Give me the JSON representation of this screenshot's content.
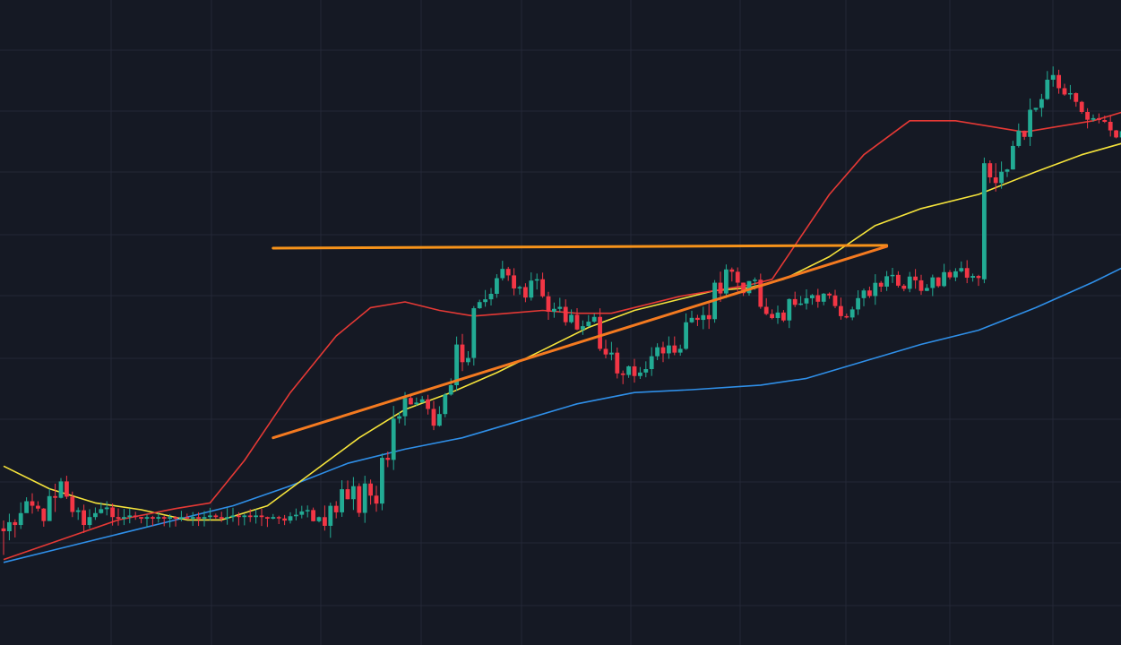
{
  "chart_data": {
    "type": "candlestick",
    "title": "",
    "xlabel": "",
    "ylabel": "",
    "grid": true,
    "ylim": [
      0,
      100
    ],
    "x_count": 196,
    "colors": {
      "background": "#151924",
      "grid": "#232836",
      "up": "#22ab94",
      "down": "#f23645",
      "resistance": "#f7931a",
      "support": "#f47a20"
    },
    "candles": {
      "start": [
        [
          13.0,
          12.5,
          14.4,
          8.3
        ],
        [
          12.5,
          14.1,
          15.6,
          10.9
        ],
        [
          14.1,
          13.6,
          14.6,
          11.4
        ],
        [
          13.6,
          15.7,
          17.6,
          12.9
        ],
        [
          15.7,
          17.8,
          18.5,
          17.4
        ],
        [
          17.8,
          17.0,
          19.2,
          15.6
        ],
        [
          17.0,
          16.5,
          17.8,
          16.0
        ],
        [
          16.5,
          14.3,
          16.6,
          13.3
        ],
        [
          14.3,
          18.7,
          20.0,
          15.9
        ],
        [
          18.7,
          18.4,
          20.9,
          15.9
        ],
        [
          18.4,
          21.3,
          21.9,
          18.3
        ],
        [
          21.3,
          18.6,
          22.3,
          18.2
        ],
        [
          18.6,
          15.9,
          19.5,
          15.0
        ],
        [
          15.9,
          16.2,
          16.7,
          14.5
        ],
        [
          16.2,
          13.6,
          17.2,
          12.2
        ],
        [
          13.6,
          15.0,
          16.4,
          13.0
        ],
        [
          15.0,
          15.7,
          16.7,
          14.5
        ],
        [
          15.7,
          16.4,
          17.6,
          15.6
        ],
        [
          16.4,
          16.7,
          17.8,
          15.3
        ],
        [
          16.7,
          15.0,
          17.4,
          13.5
        ]
      ],
      "legs": [
        [
          28,
          15.0,
          0.0,
          0.7,
          1.6,
          1
        ],
        [
          8,
          15.0,
          2.0,
          0.6,
          1.4,
          2
        ],
        [
          9,
          19.0,
          7.0,
          0.8,
          2.2,
          3
        ],
        [
          5,
          33.0,
          9.5,
          0.9,
          2.4,
          4
        ],
        [
          3,
          35.5,
          6.0,
          0.8,
          2.0,
          5
        ],
        [
          4,
          33.0,
          5.0,
          0.7,
          1.8,
          6
        ],
        [
          7,
          53.0,
          10.0,
          0.8,
          2.4,
          7
        ],
        [
          5,
          58.0,
          5.0,
          0.7,
          1.8,
          8
        ],
        [
          6,
          53.5,
          6.0,
          0.6,
          1.8,
          9
        ],
        [
          8,
          49.5,
          5.0,
          0.7,
          1.6,
          10
        ],
        [
          6,
          40.0,
          6.0,
          0.8,
          2.0,
          11
        ],
        [
          7,
          44.0,
          4.0,
          0.6,
          1.6,
          12
        ],
        [
          6,
          50.0,
          5.0,
          0.6,
          1.8,
          13
        ],
        [
          6,
          58.0,
          6.0,
          0.7,
          2.2,
          14
        ],
        [
          8,
          51.0,
          4.0,
          0.6,
          1.6,
          15
        ],
        [
          7,
          53.0,
          4.0,
          0.6,
          1.6,
          16
        ],
        [
          6,
          51.5,
          4.0,
          0.6,
          1.6,
          17
        ],
        [
          6,
          57.5,
          4.0,
          0.6,
          1.6,
          18
        ],
        [
          6,
          55.0,
          3.5,
          0.6,
          1.5,
          19
        ],
        [
          4,
          58.0,
          3.5,
          0.6,
          1.5,
          20
        ],
        [
          6,
          57.0,
          3.0,
          0.6,
          1.4,
          21
        ]
      ],
      "spike": [
        [
          57.0,
          77.5,
          78.5,
          56.3
        ],
        [
          77.5,
          75.0,
          78.0,
          74.0
        ],
        [
          75.0,
          74.0,
          77.5,
          72.5
        ],
        [
          74.0,
          76.0,
          77.8,
          73.0
        ]
      ],
      "tail": [
        [
          8,
          92.0,
          4.0,
          0.7,
          2.0,
          22
        ],
        [
          3,
          89.5,
          4.0,
          0.7,
          1.8,
          23
        ],
        [
          6,
          85.0,
          3.0,
          0.6,
          1.6,
          24
        ],
        [
          6,
          80.0,
          5.0,
          0.7,
          1.8,
          25
        ],
        [
          6,
          76.0,
          3.0,
          0.6,
          1.6,
          26
        ],
        [
          6,
          83.0,
          4.0,
          0.7,
          1.8,
          27
        ],
        [
          8,
          86.0,
          3.0,
          0.6,
          1.6,
          28
        ],
        [
          7,
          83.0,
          3.0,
          0.6,
          1.6,
          29
        ],
        [
          3,
          75.5,
          3.0,
          0.7,
          1.6,
          30
        ],
        [
          9,
          83.0,
          4.0,
          0.6,
          1.8,
          31
        ],
        [
          9,
          91.0,
          4.0,
          0.6,
          1.8,
          32
        ]
      ]
    },
    "ma_short": {
      "color": "#e53935",
      "points": [
        [
          0,
          7.5
        ],
        [
          10,
          11.0
        ],
        [
          20,
          14.5
        ],
        [
          30,
          16.5
        ],
        [
          36,
          17.5
        ],
        [
          42,
          25.0
        ],
        [
          50,
          37.0
        ],
        [
          58,
          47.0
        ],
        [
          64,
          52.0
        ],
        [
          70,
          53.0
        ],
        [
          76,
          51.5
        ],
        [
          82,
          50.5
        ],
        [
          88,
          51.0
        ],
        [
          94,
          51.5
        ],
        [
          100,
          51.0
        ],
        [
          106,
          51.0
        ],
        [
          112,
          52.5
        ],
        [
          118,
          54.0
        ],
        [
          124,
          55.0
        ],
        [
          130,
          56.0
        ],
        [
          134,
          57.0
        ],
        [
          138,
          63.0
        ],
        [
          144,
          72.0
        ],
        [
          150,
          79.0
        ],
        [
          158,
          85.0
        ],
        [
          166,
          85.0
        ],
        [
          172,
          84.0
        ],
        [
          178,
          83.0
        ],
        [
          184,
          84.0
        ],
        [
          190,
          85.0
        ],
        [
          195,
          86.5
        ]
      ]
    },
    "ma_medium": {
      "color": "#f5e33b",
      "points": [
        [
          0,
          24.0
        ],
        [
          8,
          20.0
        ],
        [
          16,
          17.5
        ],
        [
          24,
          16.3
        ],
        [
          32,
          14.5
        ],
        [
          38,
          14.5
        ],
        [
          46,
          17.0
        ],
        [
          54,
          23.0
        ],
        [
          62,
          29.0
        ],
        [
          70,
          34.0
        ],
        [
          78,
          37.0
        ],
        [
          86,
          40.5
        ],
        [
          94,
          44.5
        ],
        [
          102,
          48.5
        ],
        [
          110,
          51.5
        ],
        [
          118,
          53.5
        ],
        [
          124,
          55.0
        ],
        [
          130,
          55.5
        ],
        [
          136,
          57.0
        ],
        [
          144,
          61.0
        ],
        [
          152,
          66.5
        ],
        [
          160,
          69.5
        ],
        [
          170,
          72.0
        ],
        [
          180,
          76.0
        ],
        [
          188,
          79.0
        ],
        [
          195,
          81.0
        ]
      ]
    },
    "ma_long": {
      "color": "#2f8fe8",
      "points": [
        [
          0,
          7.0
        ],
        [
          10,
          9.5
        ],
        [
          20,
          12.0
        ],
        [
          30,
          14.5
        ],
        [
          40,
          17.0
        ],
        [
          50,
          20.5
        ],
        [
          60,
          24.5
        ],
        [
          70,
          27.0
        ],
        [
          80,
          29.0
        ],
        [
          90,
          32.0
        ],
        [
          100,
          35.0
        ],
        [
          110,
          37.0
        ],
        [
          120,
          37.5
        ],
        [
          132,
          38.3
        ],
        [
          140,
          39.5
        ],
        [
          150,
          42.5
        ],
        [
          160,
          45.5
        ],
        [
          170,
          48.0
        ],
        [
          180,
          52.0
        ],
        [
          190,
          56.5
        ],
        [
          195,
          59.0
        ]
      ]
    },
    "resistance_line": {
      "x1": 47,
      "y1": 62.5,
      "x2": 154,
      "y2": 63.0
    },
    "support_line": {
      "x1": 47,
      "y1": 29.0,
      "x2": 154,
      "y2": 62.8
    }
  }
}
